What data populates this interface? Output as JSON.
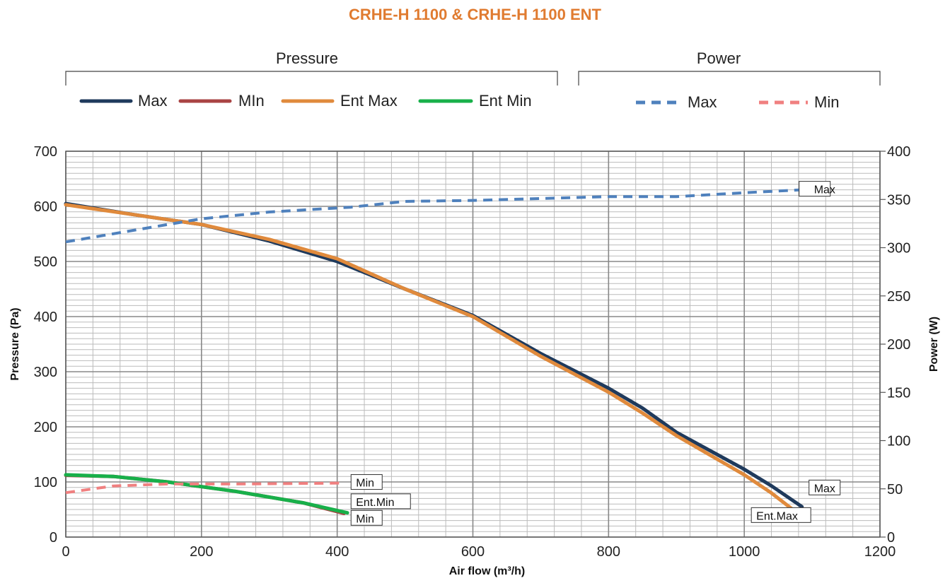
{
  "chart_data": {
    "type": "line",
    "title": "CRHE-H 1100 & CRHE-H 1100 ENT",
    "xlabel": "Air flow (m³/h)",
    "ylabel_left": "Pressure (Pa)",
    "ylabel_right": "Power (W)",
    "xlim": [
      0,
      1200
    ],
    "ylim_left": [
      0,
      700
    ],
    "ylim_right": [
      0,
      400
    ],
    "x_ticks": [
      "0",
      "200",
      "400",
      "600",
      "800",
      "1000",
      "1200"
    ],
    "y_ticks_left": [
      "0",
      "100",
      "200",
      "300",
      "400",
      "500",
      "600",
      "700"
    ],
    "y_ticks_right": [
      "0",
      "50",
      "100",
      "150",
      "200",
      "250",
      "300",
      "350",
      "400"
    ],
    "grid": true,
    "legend": {
      "pressure_group": "Pressure",
      "power_group": "Power",
      "pressure_entries": [
        "Max",
        "MIn",
        "Ent Max",
        "Ent Min"
      ],
      "power_entries": [
        "Max",
        "Min"
      ]
    },
    "series": [
      {
        "name": "Max",
        "axis": "left",
        "color": "#1f3a5c",
        "style": "solid",
        "points": [
          [
            0,
            605
          ],
          [
            100,
            585
          ],
          [
            200,
            567
          ],
          [
            300,
            537
          ],
          [
            400,
            500
          ],
          [
            500,
            450
          ],
          [
            600,
            402
          ],
          [
            700,
            333
          ],
          [
            800,
            270
          ],
          [
            850,
            234
          ],
          [
            900,
            190
          ],
          [
            1000,
            123
          ],
          [
            1040,
            93
          ],
          [
            1085,
            55
          ]
        ]
      },
      {
        "name": "MIn",
        "axis": "left",
        "color": "#a94444",
        "style": "solid",
        "points": [
          [
            0,
            112
          ],
          [
            70,
            110
          ],
          [
            150,
            100
          ],
          [
            250,
            83
          ],
          [
            350,
            62
          ],
          [
            410,
            43
          ]
        ]
      },
      {
        "name": "Ent Max",
        "axis": "left",
        "color": "#e08a3c",
        "style": "solid",
        "points": [
          [
            0,
            603
          ],
          [
            100,
            585
          ],
          [
            200,
            567
          ],
          [
            300,
            540
          ],
          [
            400,
            505
          ],
          [
            500,
            450
          ],
          [
            600,
            400
          ],
          [
            700,
            328
          ],
          [
            800,
            263
          ],
          [
            850,
            225
          ],
          [
            900,
            184
          ],
          [
            1000,
            113
          ],
          [
            1040,
            80
          ],
          [
            1085,
            37
          ]
        ]
      },
      {
        "name": "Ent Min",
        "axis": "left",
        "color": "#18b04a",
        "style": "solid",
        "points": [
          [
            0,
            113
          ],
          [
            70,
            110
          ],
          [
            150,
            100
          ],
          [
            250,
            83
          ],
          [
            350,
            62
          ],
          [
            415,
            44
          ]
        ]
      },
      {
        "name": "Max",
        "axis": "right",
        "color": "#4f81bd",
        "style": "dashed",
        "points": [
          [
            0,
            306
          ],
          [
            100,
            318
          ],
          [
            200,
            330
          ],
          [
            300,
            337
          ],
          [
            420,
            342
          ],
          [
            500,
            348
          ],
          [
            600,
            349
          ],
          [
            800,
            353
          ],
          [
            900,
            353
          ],
          [
            1000,
            357
          ],
          [
            1085,
            360
          ]
        ]
      },
      {
        "name": "Min",
        "axis": "right",
        "color": "#f08080",
        "style": "dashed",
        "points": [
          [
            0,
            46
          ],
          [
            70,
            53
          ],
          [
            150,
            55
          ],
          [
            250,
            55
          ],
          [
            410,
            56
          ]
        ]
      }
    ],
    "annotations": [
      {
        "text": "Max",
        "x": 1085,
        "y_right": 360,
        "axis": "right"
      },
      {
        "text": "Min",
        "x": 410,
        "y_right": 56,
        "axis": "right"
      },
      {
        "text": "Ent.Min",
        "x": 410,
        "y": 63,
        "axis": "left"
      },
      {
        "text": "Min",
        "x": 410,
        "y": 33,
        "axis": "left"
      },
      {
        "text": "Max",
        "x": 1085,
        "y": 88,
        "axis": "left"
      },
      {
        "text": "Ent.Max",
        "x": 1000,
        "y": 38,
        "axis": "left"
      }
    ],
    "colors": {
      "title": "#e07b30",
      "grid_major": "#888888",
      "grid_minor": "#bbbbbb"
    }
  }
}
